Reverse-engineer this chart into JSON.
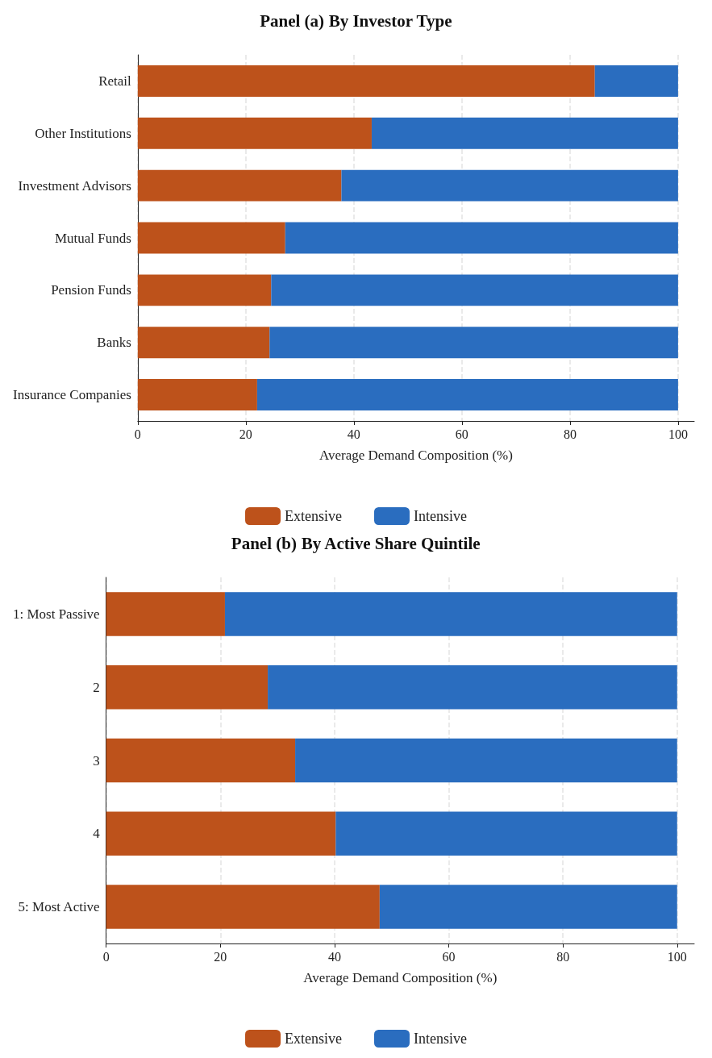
{
  "chart_data": [
    {
      "type": "bar",
      "orientation": "horizontal",
      "stacked": true,
      "title": "Panel (a) By Investor Type",
      "xlabel": "Average Demand Composition (%)",
      "categories": [
        "Retail",
        "Other Institutions",
        "Investment Advisors",
        "Mutual Funds",
        "Pension Funds",
        "Banks",
        "Insurance Companies"
      ],
      "series": [
        {
          "name": "Extensive",
          "color": "#bd521b",
          "values": [
            84.6,
            43.3,
            37.7,
            27.3,
            24.7,
            24.4,
            22.1
          ]
        },
        {
          "name": "Intensive",
          "color": "#2a6dbf",
          "values": [
            15.4,
            56.7,
            62.3,
            72.7,
            75.3,
            75.6,
            77.9
          ]
        }
      ],
      "xlim": [
        0,
        103
      ],
      "xticks": [
        0,
        20,
        40,
        60,
        80,
        100
      ],
      "grid": "x",
      "legend": "bottom"
    },
    {
      "type": "bar",
      "orientation": "horizontal",
      "stacked": true,
      "title": "Panel (b) By Active Share Quintile",
      "xlabel": "Average Demand Composition (%)",
      "categories": [
        "1: Most Passive",
        "2",
        "3",
        "4",
        "5: Most Active"
      ],
      "series": [
        {
          "name": "Extensive",
          "color": "#bd521b",
          "values": [
            20.8,
            28.3,
            33.1,
            40.2,
            47.9
          ]
        },
        {
          "name": "Intensive",
          "color": "#2a6dbf",
          "values": [
            79.2,
            71.7,
            66.9,
            59.8,
            52.1
          ]
        }
      ],
      "xlim": [
        0,
        103
      ],
      "xticks": [
        0,
        20,
        40,
        60,
        80,
        100
      ],
      "grid": "x",
      "legend": "bottom"
    }
  ]
}
